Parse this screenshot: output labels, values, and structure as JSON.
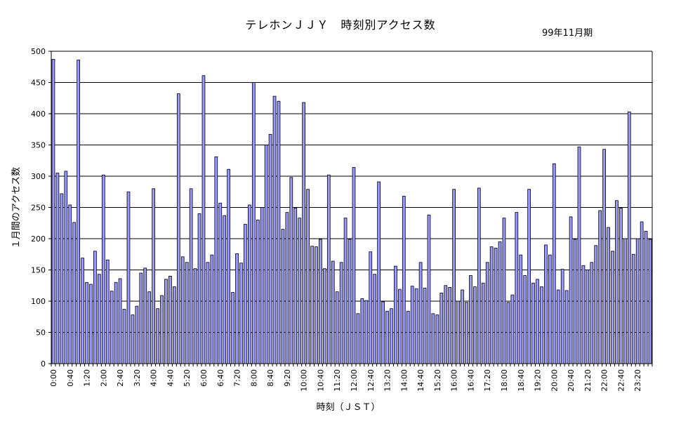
{
  "title": "テレホンＪＪＹ　時刻別アクセス数",
  "period_label": "99年11月期",
  "colors": {
    "bar_fill": "#9999ff",
    "bar_stroke": "#000000",
    "grid": "#000000",
    "background": "#ffffff"
  },
  "chart_data": {
    "type": "bar",
    "title": "テレホンＪＪＹ　時刻別アクセス数",
    "xlabel": "時刻（ＪＳＴ）",
    "ylabel": "１月間のアクセス数",
    "ylim": [
      0,
      500
    ],
    "yticks": [
      0,
      50,
      100,
      150,
      200,
      250,
      300,
      350,
      400,
      450,
      500
    ],
    "grid": "horizontal",
    "xtick_labels": [
      "0:00",
      "0:40",
      "1:20",
      "2:00",
      "2:40",
      "3:20",
      "4:00",
      "4:40",
      "5:20",
      "6:00",
      "6:40",
      "7:20",
      "8:00",
      "8:40",
      "9:20",
      "10:00",
      "10:40",
      "11:20",
      "12:00",
      "12:40",
      "13:20",
      "14:00",
      "14:40",
      "15:20",
      "16:00",
      "16:40",
      "17:20",
      "18:00",
      "18:40",
      "19:20",
      "20:00",
      "20:40",
      "21:20",
      "22:00",
      "22:40",
      "23:20"
    ],
    "bin_minutes": 10,
    "values": [
      487,
      305,
      272,
      308,
      254,
      226,
      486,
      169,
      130,
      127,
      180,
      143,
      302,
      166,
      116,
      130,
      136,
      87,
      275,
      78,
      92,
      145,
      153,
      115,
      280,
      88,
      109,
      135,
      140,
      123,
      432,
      171,
      162,
      280,
      152,
      240,
      461,
      162,
      174,
      331,
      257,
      237,
      311,
      114,
      176,
      161,
      223,
      254,
      450,
      230,
      250,
      350,
      367,
      428,
      420,
      215,
      242,
      298,
      249,
      233,
      418,
      279,
      188,
      187,
      199,
      152,
      302,
      164,
      115,
      162,
      233,
      199,
      314,
      80,
      104,
      101,
      179,
      143,
      291,
      99,
      84,
      88,
      156,
      119,
      268,
      84,
      124,
      120,
      162,
      121,
      238,
      80,
      78,
      113,
      125,
      122,
      279,
      100,
      118,
      98,
      141,
      123,
      281,
      129,
      162,
      187,
      185,
      195,
      233,
      98,
      110,
      242,
      174,
      141,
      279,
      129,
      135,
      123,
      190,
      174,
      320,
      118,
      151,
      117,
      235,
      199,
      347,
      157,
      150,
      162,
      189,
      245,
      343,
      218,
      180,
      261,
      249,
      200,
      403,
      175,
      200,
      227,
      212,
      199
    ]
  }
}
